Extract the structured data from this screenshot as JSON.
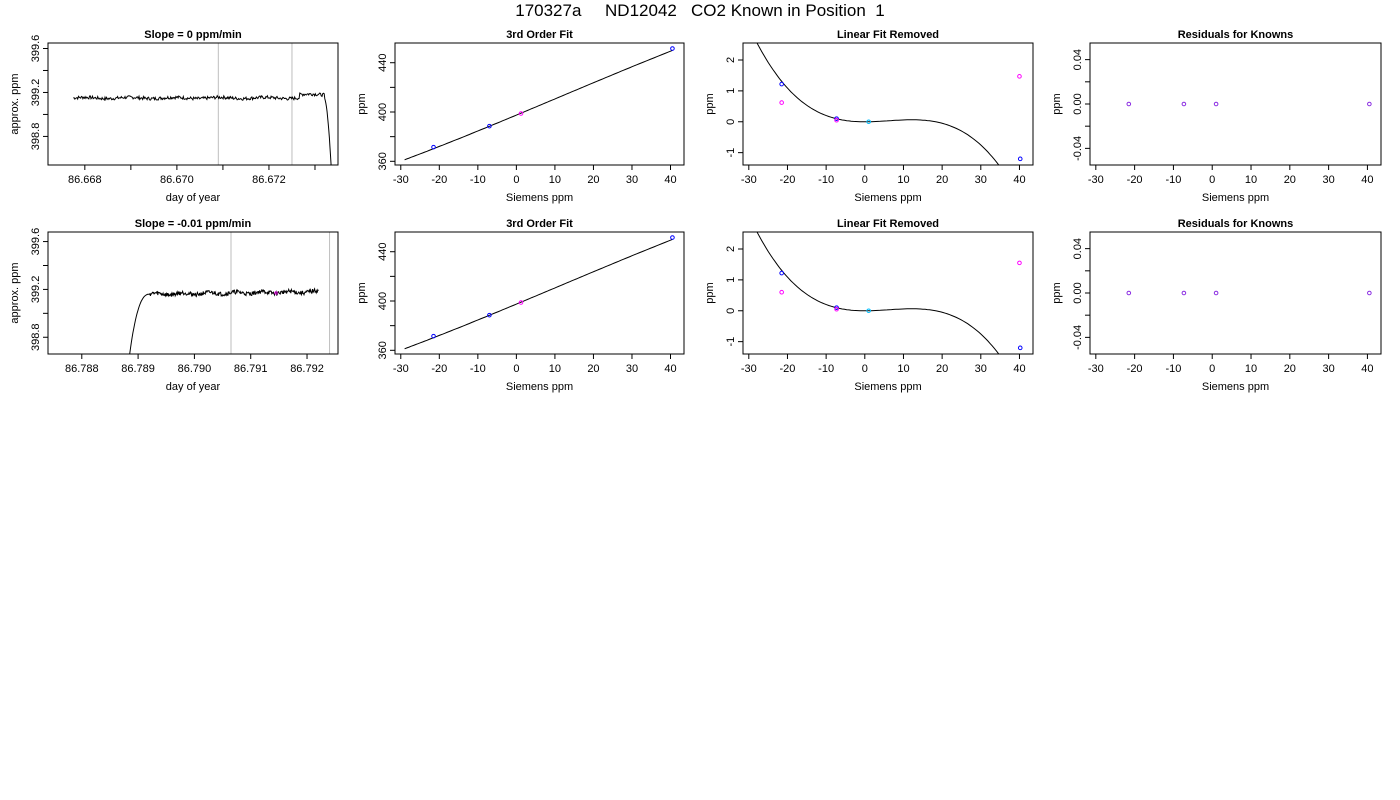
{
  "title": "170327a     ND12042   CO2 Known in Position  1",
  "colors": {
    "line": "#000000",
    "gray": "#bebebe",
    "blue": "#0000ff",
    "magenta": "#ff00ff",
    "cyan": "#00bfff",
    "purple": "#8a2be2"
  },
  "chart_data": [
    {
      "type": "line",
      "title": "Slope =  0  ppm/min",
      "xlabel": "day of year",
      "ylabel": "approx. ppm",
      "xlim": [
        86.6672,
        86.6735
      ],
      "ylim": [
        398.54,
        399.65
      ],
      "xticks": [
        86.668,
        86.669,
        86.67,
        86.671,
        86.672,
        86.673
      ],
      "xtick_labels": [
        "86.668",
        "",
        "86.670",
        "",
        "86.672",
        ""
      ],
      "yticks": [
        398.8,
        399.0,
        399.2,
        399.4,
        399.6
      ],
      "ytick_labels": [
        "398.8",
        "",
        "399.2",
        "",
        "399.6"
      ],
      "vlines": [
        86.6709,
        86.6725
      ],
      "trace": {
        "start": 86.66775,
        "end": 86.6732,
        "level": 399.15,
        "tail_end": 86.67335,
        "tail_level": 398.54
      }
    },
    {
      "type": "scatter",
      "title": "3rd Order Fit",
      "xlabel": "Siemens ppm",
      "ylabel": "ppm",
      "xlim": [
        -31.5,
        43.5
      ],
      "ylim": [
        357,
        456
      ],
      "xticks": [
        -30,
        -20,
        -10,
        0,
        10,
        20,
        30,
        40
      ],
      "xtick_labels": [
        "-30",
        "-20",
        "-10",
        "0",
        "10",
        "20",
        "30",
        "40"
      ],
      "yticks": [
        360,
        380,
        400,
        420,
        440
      ],
      "ytick_labels": [
        "360",
        "",
        "400",
        "",
        "440"
      ],
      "points": [
        {
          "x": -21.5,
          "y": 371.5,
          "color": "blue"
        },
        {
          "x": -7.0,
          "y": 388.5,
          "color": "blue"
        },
        {
          "x": 1.2,
          "y": 398.8,
          "color": "magenta"
        },
        {
          "x": 40.5,
          "y": 451.5,
          "color": "blue"
        }
      ],
      "fit": {
        "type": "poly3",
        "coef": [
          397.5,
          1.3042,
          0.001,
          -3e-05
        ]
      }
    },
    {
      "type": "scatter",
      "title": "Linear Fit Removed",
      "xlabel": "Siemens ppm",
      "ylabel": "ppm",
      "xlim": [
        -31.5,
        43.5
      ],
      "ylim": [
        -1.4,
        2.55
      ],
      "xticks": [
        -30,
        -20,
        -10,
        0,
        10,
        20,
        30,
        40
      ],
      "xtick_labels": [
        "-30",
        "-20",
        "-10",
        "0",
        "10",
        "20",
        "30",
        "40"
      ],
      "yticks": [
        -1,
        0,
        1,
        2
      ],
      "ytick_labels": [
        "-1",
        "0",
        "1",
        "2"
      ],
      "points": [
        {
          "x": -21.5,
          "y": 1.22,
          "color": "blue"
        },
        {
          "x": -21.5,
          "y": 0.62,
          "color": "magenta"
        },
        {
          "x": -7.3,
          "y": 0.1,
          "color": "blue"
        },
        {
          "x": -7.3,
          "y": 0.05,
          "color": "magenta"
        },
        {
          "x": 1.0,
          "y": 0.0,
          "color": "cyan"
        },
        {
          "x": 40.0,
          "y": 1.47,
          "color": "magenta"
        },
        {
          "x": 40.2,
          "y": -1.2,
          "color": "blue"
        }
      ],
      "fit": {
        "type": "poly3",
        "coef": [
          0,
          0,
          0.0013,
          -7.12e-05
        ]
      }
    },
    {
      "type": "scatter",
      "title": "Residuals for Knowns",
      "xlabel": "Siemens ppm",
      "ylabel": "ppm",
      "xlim": [
        -31.5,
        43.5
      ],
      "ylim": [
        -0.055,
        0.055
      ],
      "xticks": [
        -30,
        -20,
        -10,
        0,
        10,
        20,
        30,
        40
      ],
      "xtick_labels": [
        "-30",
        "-20",
        "-10",
        "0",
        "10",
        "20",
        "30",
        "40"
      ],
      "yticks": [
        -0.04,
        -0.02,
        0.0,
        0.02,
        0.04
      ],
      "ytick_labels": [
        "-0.04",
        "",
        "0.00",
        "",
        "0.04"
      ],
      "points": [
        {
          "x": -21.5,
          "y": 0.0,
          "color": "purple"
        },
        {
          "x": -7.3,
          "y": 0.0,
          "color": "purple"
        },
        {
          "x": 1.0,
          "y": 0.0,
          "color": "purple"
        },
        {
          "x": 40.5,
          "y": 0.0,
          "color": "purple"
        }
      ]
    },
    {
      "type": "line",
      "title": "Slope =  -0.01  ppm/min",
      "xlabel": "day of year",
      "ylabel": "approx. ppm",
      "xlim": [
        86.7874,
        86.79255
      ],
      "ylim": [
        398.66,
        399.68
      ],
      "xticks": [
        86.788,
        86.789,
        86.79,
        86.791,
        86.792
      ],
      "xtick_labels": [
        "86.788",
        "86.789",
        "86.790",
        "86.791",
        "86.792"
      ],
      "yticks": [
        398.8,
        399.0,
        399.2,
        399.4,
        399.6
      ],
      "ytick_labels": [
        "398.8",
        "",
        "399.2",
        "",
        "399.6"
      ],
      "vlines": [
        86.79065,
        86.7924
      ],
      "trace": {
        "rise_start": 86.78885,
        "start_level": 398.66,
        "rise_end": 86.7892,
        "level": 399.16,
        "end": 86.7922,
        "end_level": 399.18
      },
      "marker": {
        "x": 86.79145,
        "y": 399.17,
        "color": "magenta"
      }
    },
    {
      "type": "scatter",
      "title": "3rd Order Fit",
      "xlabel": "Siemens ppm",
      "ylabel": "ppm",
      "xlim": [
        -31.5,
        43.5
      ],
      "ylim": [
        357,
        456
      ],
      "xticks": [
        -30,
        -20,
        -10,
        0,
        10,
        20,
        30,
        40
      ],
      "xtick_labels": [
        "-30",
        "-20",
        "-10",
        "0",
        "10",
        "20",
        "30",
        "40"
      ],
      "yticks": [
        360,
        380,
        400,
        420,
        440
      ],
      "ytick_labels": [
        "360",
        "",
        "400",
        "",
        "440"
      ],
      "points": [
        {
          "x": -21.5,
          "y": 371.5,
          "color": "blue"
        },
        {
          "x": -7.0,
          "y": 388.5,
          "color": "blue"
        },
        {
          "x": 1.2,
          "y": 398.8,
          "color": "magenta"
        },
        {
          "x": 40.5,
          "y": 451.5,
          "color": "blue"
        }
      ],
      "fit": {
        "type": "poly3",
        "coef": [
          397.5,
          1.3042,
          0.001,
          -3e-05
        ]
      }
    },
    {
      "type": "scatter",
      "title": "Linear Fit Removed",
      "xlabel": "Siemens ppm",
      "ylabel": "ppm",
      "xlim": [
        -31.5,
        43.5
      ],
      "ylim": [
        -1.4,
        2.55
      ],
      "xticks": [
        -30,
        -20,
        -10,
        0,
        10,
        20,
        30,
        40
      ],
      "xtick_labels": [
        "-30",
        "-20",
        "-10",
        "0",
        "10",
        "20",
        "30",
        "40"
      ],
      "yticks": [
        -1,
        0,
        1,
        2
      ],
      "ytick_labels": [
        "-1",
        "0",
        "1",
        "2"
      ],
      "points": [
        {
          "x": -21.5,
          "y": 1.22,
          "color": "blue"
        },
        {
          "x": -21.5,
          "y": 0.6,
          "color": "magenta"
        },
        {
          "x": -7.3,
          "y": 0.1,
          "color": "blue"
        },
        {
          "x": -7.3,
          "y": 0.05,
          "color": "magenta"
        },
        {
          "x": 1.0,
          "y": 0.0,
          "color": "cyan"
        },
        {
          "x": 40.0,
          "y": 1.55,
          "color": "magenta"
        },
        {
          "x": 40.2,
          "y": -1.2,
          "color": "blue"
        }
      ],
      "fit": {
        "type": "poly3",
        "coef": [
          0,
          0,
          0.0013,
          -7.12e-05
        ]
      }
    },
    {
      "type": "scatter",
      "title": "Residuals for Knowns",
      "xlabel": "Siemens ppm",
      "ylabel": "ppm",
      "xlim": [
        -31.5,
        43.5
      ],
      "ylim": [
        -0.055,
        0.055
      ],
      "xticks": [
        -30,
        -20,
        -10,
        0,
        10,
        20,
        30,
        40
      ],
      "xtick_labels": [
        "-30",
        "-20",
        "-10",
        "0",
        "10",
        "20",
        "30",
        "40"
      ],
      "yticks": [
        -0.04,
        -0.02,
        0.0,
        0.02,
        0.04
      ],
      "ytick_labels": [
        "-0.04",
        "",
        "0.00",
        "",
        "0.04"
      ],
      "points": [
        {
          "x": -21.5,
          "y": 0.0,
          "color": "purple"
        },
        {
          "x": -7.3,
          "y": 0.0,
          "color": "purple"
        },
        {
          "x": 1.0,
          "y": 0.0,
          "color": "purple"
        },
        {
          "x": 40.5,
          "y": 0.0,
          "color": "purple"
        }
      ]
    }
  ]
}
